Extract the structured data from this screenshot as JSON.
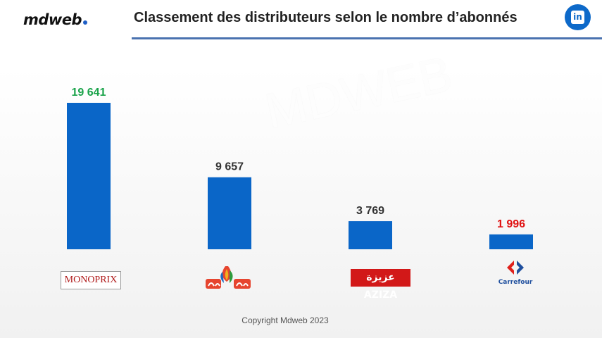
{
  "header": {
    "brand": "mdweb",
    "title": "Classement des distributeurs selon le nombre d’abonnés",
    "linkedin_icon": "in"
  },
  "watermark": "MDWEB",
  "footer": {
    "copyright": "Copyright Mdweb 2023"
  },
  "logos": {
    "monoprix": "MONOPRIX",
    "aziza": "عزيزة AZIZA",
    "carrefour": "Carrefour"
  },
  "colors": {
    "bar": "#0a66c8",
    "highest_label": "#1aa34a",
    "lowest_label": "#e01010",
    "label": "#333333"
  },
  "chart_data": {
    "type": "bar",
    "categories": [
      "Monoprix",
      "Magasin Général",
      "Aziza",
      "Carrefour"
    ],
    "values": [
      19641,
      9657,
      3769,
      1996
    ],
    "value_labels": [
      "19 641",
      "9 657",
      "3 769",
      "1 996"
    ],
    "title": "Classement des distributeurs selon le nombre d’abonnés",
    "ylim": [
      0,
      19641
    ]
  }
}
